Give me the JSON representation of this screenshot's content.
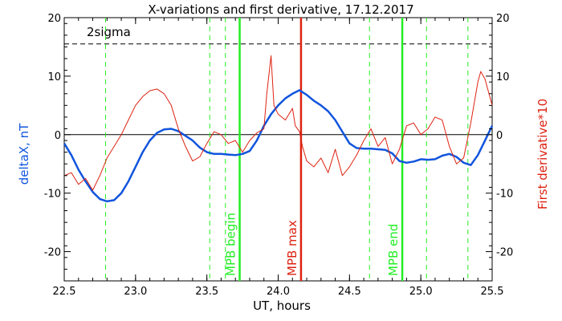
{
  "chart_data": {
    "type": "line",
    "title": "X-variations and first derivative, 17.12.2017",
    "xlabel": "UT, hours",
    "ylabel_left": "deltaX, nT",
    "ylabel_right": "First derivative*10",
    "xlim": [
      22.5,
      25.5
    ],
    "ylim": [
      -25,
      20
    ],
    "x_ticks": [
      22.5,
      23.0,
      23.5,
      24.0,
      24.5,
      25.0,
      25.5
    ],
    "x_tick_labels": [
      "22.5",
      "23.0",
      "23.5",
      "24.0",
      "24.5",
      "25.0",
      "25.5"
    ],
    "y_ticks": [
      -20,
      -10,
      0,
      10,
      20
    ],
    "y_tick_labels": [
      "-20",
      "-10",
      "0",
      "10",
      "20"
    ],
    "threshold": {
      "label": "2sigma",
      "value": 15.5,
      "color": "#000000",
      "style": "dashed"
    },
    "zero_line": 0,
    "colors": {
      "deltaX": "#1155dd",
      "derivative": "#dd2211",
      "mpb": "#22ee22",
      "mpb_max": "#dd2211",
      "marker": "#22ee22"
    },
    "series": [
      {
        "axis": "left",
        "color": "#1155dd",
        "points": [
          [
            22.5,
            -1.5
          ],
          [
            22.55,
            -3.5
          ],
          [
            22.6,
            -6
          ],
          [
            22.65,
            -8
          ],
          [
            22.7,
            -9.8
          ],
          [
            22.75,
            -11
          ],
          [
            22.8,
            -11.4
          ],
          [
            22.85,
            -11.2
          ],
          [
            22.9,
            -10
          ],
          [
            22.95,
            -8
          ],
          [
            23.0,
            -5.5
          ],
          [
            23.05,
            -3
          ],
          [
            23.1,
            -1
          ],
          [
            23.15,
            0.3
          ],
          [
            23.2,
            0.9
          ],
          [
            23.25,
            1
          ],
          [
            23.3,
            0.6
          ],
          [
            23.35,
            -0.2
          ],
          [
            23.4,
            -1
          ],
          [
            23.45,
            -2.2
          ],
          [
            23.5,
            -3
          ],
          [
            23.55,
            -3.3
          ],
          [
            23.6,
            -3.3
          ],
          [
            23.65,
            -3.4
          ],
          [
            23.7,
            -3.5
          ],
          [
            23.75,
            -3.3
          ],
          [
            23.8,
            -2.8
          ],
          [
            23.85,
            -1
          ],
          [
            23.9,
            1.5
          ],
          [
            23.95,
            3.5
          ],
          [
            24.0,
            5
          ],
          [
            24.05,
            6.2
          ],
          [
            24.1,
            7
          ],
          [
            24.15,
            7.6
          ],
          [
            24.2,
            6.8
          ],
          [
            24.25,
            5.8
          ],
          [
            24.3,
            5
          ],
          [
            24.35,
            4
          ],
          [
            24.4,
            2.5
          ],
          [
            24.45,
            0.5
          ],
          [
            24.5,
            -1.5
          ],
          [
            24.55,
            -2.3
          ],
          [
            24.6,
            -2.4
          ],
          [
            24.65,
            -2.4
          ],
          [
            24.7,
            -2.5
          ],
          [
            24.75,
            -2.6
          ],
          [
            24.8,
            -3.2
          ],
          [
            24.85,
            -4.5
          ],
          [
            24.9,
            -4.8
          ],
          [
            24.95,
            -4.6
          ],
          [
            25.0,
            -4.2
          ],
          [
            25.05,
            -4.3
          ],
          [
            25.1,
            -4.2
          ],
          [
            25.15,
            -3.6
          ],
          [
            25.2,
            -3.3
          ],
          [
            25.25,
            -3.8
          ],
          [
            25.3,
            -4.8
          ],
          [
            25.35,
            -5.2
          ],
          [
            25.4,
            -3.5
          ],
          [
            25.45,
            -1
          ],
          [
            25.5,
            1.5
          ]
        ]
      },
      {
        "axis": "right",
        "color": "#dd2211",
        "points": [
          [
            22.5,
            -7
          ],
          [
            22.55,
            -6.5
          ],
          [
            22.6,
            -8.5
          ],
          [
            22.65,
            -7.5
          ],
          [
            22.7,
            -9.5
          ],
          [
            22.75,
            -7
          ],
          [
            22.8,
            -4
          ],
          [
            22.85,
            -2
          ],
          [
            22.9,
            0
          ],
          [
            22.95,
            2.5
          ],
          [
            23.0,
            5
          ],
          [
            23.05,
            6.5
          ],
          [
            23.1,
            7.5
          ],
          [
            23.15,
            7.8
          ],
          [
            23.2,
            7
          ],
          [
            23.25,
            5
          ],
          [
            23.3,
            1
          ],
          [
            23.35,
            -2
          ],
          [
            23.4,
            -4.5
          ],
          [
            23.45,
            -3.8
          ],
          [
            23.5,
            -1.5
          ],
          [
            23.55,
            0.5
          ],
          [
            23.6,
            0
          ],
          [
            23.65,
            -1.5
          ],
          [
            23.7,
            -1
          ],
          [
            23.75,
            -3
          ],
          [
            23.8,
            -1
          ],
          [
            23.85,
            0.3
          ],
          [
            23.9,
            1
          ],
          [
            23.92,
            7
          ],
          [
            23.95,
            13.5
          ],
          [
            23.97,
            5
          ],
          [
            24.0,
            3.5
          ],
          [
            24.05,
            2.5
          ],
          [
            24.1,
            4.5
          ],
          [
            24.12,
            1.5
          ],
          [
            24.15,
            0.5
          ],
          [
            24.17,
            -2
          ],
          [
            24.2,
            -4.5
          ],
          [
            24.25,
            -5.5
          ],
          [
            24.3,
            -4
          ],
          [
            24.35,
            -6.5
          ],
          [
            24.4,
            -2.5
          ],
          [
            24.45,
            -7
          ],
          [
            24.5,
            -5.5
          ],
          [
            24.55,
            -3.5
          ],
          [
            24.6,
            -1
          ],
          [
            24.65,
            1
          ],
          [
            24.7,
            -2
          ],
          [
            24.75,
            -0.5
          ],
          [
            24.8,
            -5
          ],
          [
            24.85,
            -2.5
          ],
          [
            24.9,
            1.5
          ],
          [
            24.95,
            2
          ],
          [
            25.0,
            0
          ],
          [
            25.05,
            1
          ],
          [
            25.1,
            3
          ],
          [
            25.15,
            2.5
          ],
          [
            25.2,
            -2
          ],
          [
            25.25,
            -5
          ],
          [
            25.3,
            -4
          ],
          [
            25.35,
            2
          ],
          [
            25.4,
            9
          ],
          [
            25.42,
            10.8
          ],
          [
            25.45,
            9.5
          ],
          [
            25.5,
            5
          ]
        ]
      }
    ],
    "vertical_lines": [
      {
        "x": 22.79,
        "style": "dashed",
        "color": "#22ee22"
      },
      {
        "x": 23.52,
        "style": "dashed",
        "color": "#22ee22"
      },
      {
        "x": 23.63,
        "style": "dashed",
        "color": "#22ee22"
      },
      {
        "x": 23.73,
        "style": "solid",
        "color": "#22ee22",
        "label": "MPB begin"
      },
      {
        "x": 24.16,
        "style": "solid",
        "color": "#dd2211",
        "label": "MPB max"
      },
      {
        "x": 24.64,
        "style": "dashed",
        "color": "#22ee22"
      },
      {
        "x": 24.87,
        "style": "solid",
        "color": "#22ee22",
        "label": "MPB end"
      },
      {
        "x": 25.04,
        "style": "dashed",
        "color": "#22ee22"
      },
      {
        "x": 25.33,
        "style": "dashed",
        "color": "#22ee22"
      }
    ]
  }
}
